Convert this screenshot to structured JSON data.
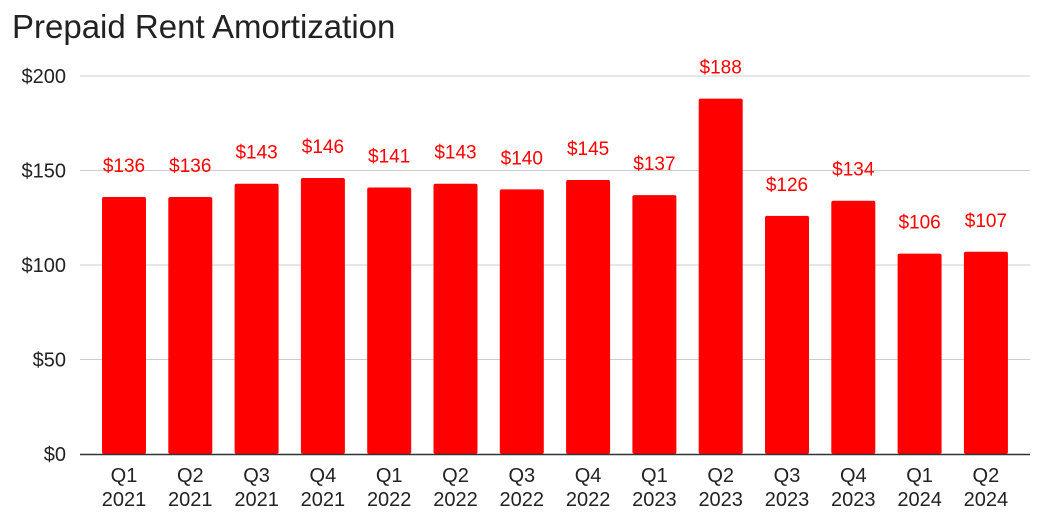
{
  "chart_data": {
    "type": "bar",
    "title": "Prepaid Rent Amortization",
    "xlabel": "",
    "ylabel": "",
    "ylim": [
      0,
      200
    ],
    "yticks": [
      0,
      50,
      100,
      150,
      200
    ],
    "ytick_labels": [
      "$0",
      "$50",
      "$100",
      "$150",
      "$200"
    ],
    "grid": true,
    "legend": "none",
    "categories": [
      [
        "Q1",
        "2021"
      ],
      [
        "Q2",
        "2021"
      ],
      [
        "Q3",
        "2021"
      ],
      [
        "Q4",
        "2021"
      ],
      [
        "Q1",
        "2022"
      ],
      [
        "Q2",
        "2022"
      ],
      [
        "Q3",
        "2022"
      ],
      [
        "Q4",
        "2022"
      ],
      [
        "Q1",
        "2023"
      ],
      [
        "Q2",
        "2023"
      ],
      [
        "Q3",
        "2023"
      ],
      [
        "Q4",
        "2023"
      ],
      [
        "Q1",
        "2024"
      ],
      [
        "Q2",
        "2024"
      ]
    ],
    "values": [
      136,
      136,
      143,
      146,
      141,
      143,
      140,
      145,
      137,
      188,
      126,
      134,
      106,
      107
    ],
    "data_labels": [
      "$136",
      "$136",
      "$143",
      "$146",
      "$141",
      "$143",
      "$140",
      "$145",
      "$137",
      "$188",
      "$126",
      "$134",
      "$106",
      "$107"
    ],
    "colors": {
      "bar": "#ff0000",
      "data_label": "#ff0000",
      "grid": "#cccccc",
      "axis": "#333333",
      "text": "#222222"
    }
  }
}
